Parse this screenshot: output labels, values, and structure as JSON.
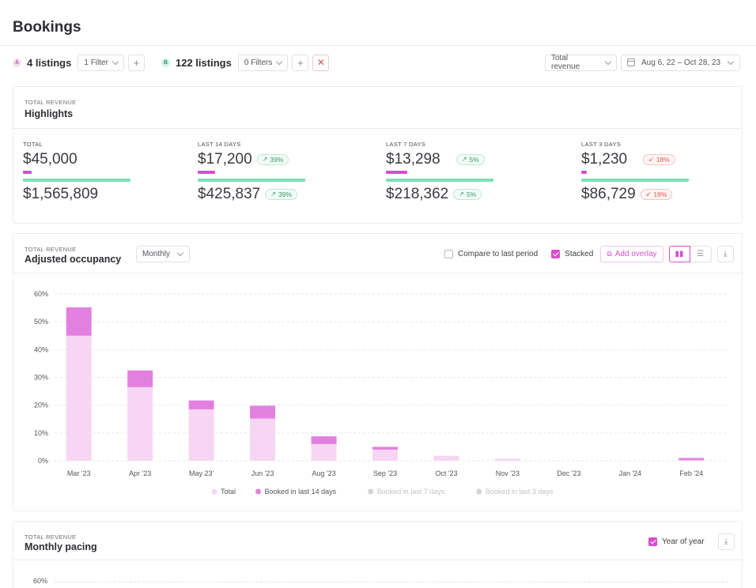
{
  "page": {
    "title": "Bookings"
  },
  "filters": {
    "group_a": {
      "badge": "A",
      "listings": "4 listings",
      "filter_label": "1 Filter"
    },
    "group_b": {
      "badge": "B",
      "listings": "122 listings",
      "filter_label": "0 Filters"
    },
    "metric_select": "Total revenue",
    "date_range": "Aug 6, 22 – Oct 28, 23"
  },
  "highlights": {
    "eyebrow": "TOTAL REVENUE",
    "title": "Highlights",
    "items": [
      {
        "label": "TOTAL",
        "value_a": "$45,000",
        "value_b": "$1,565,809",
        "pink_share": 0.08,
        "green_share": 1.0,
        "change_a": "",
        "change_b": "",
        "direction": ""
      },
      {
        "label": "LAST 14 DAYS",
        "value_a": "$17,200",
        "value_b": "$425,837",
        "pink_share": 0.16,
        "green_share": 1.0,
        "change_a": "39%",
        "change_b": "39%",
        "direction": "up"
      },
      {
        "label": "LAST 7 DAYS",
        "value_a": "$13,298",
        "value_b": "$218,362",
        "pink_share": 0.2,
        "green_share": 1.0,
        "change_a": "5%",
        "change_b": "5%",
        "direction": "up"
      },
      {
        "label": "LAST 3 DAYS",
        "value_a": "$1,230",
        "value_b": "$86,729",
        "pink_share": 0.05,
        "green_share": 1.0,
        "change_a": "18%",
        "change_b": "18%",
        "direction": "down"
      }
    ]
  },
  "occupancy": {
    "eyebrow": "TOTAL REVENUE",
    "title": "Adjusted occupancy",
    "period_select": "Monthly",
    "compare_label": "Compare to last period",
    "compare_checked": false,
    "stacked_label": "Stacked",
    "stacked_checked": true,
    "add_overlay_label": "Add overlay",
    "view_icons": [
      "bar-chart-icon",
      "table-icon"
    ],
    "download_icon": "download-icon"
  },
  "chart_data": {
    "type": "bar",
    "stacked": true,
    "categories": [
      "Mar '23",
      "Apr '23",
      "May 23'",
      "Jun '23",
      "Aug '23",
      "Sep '23",
      "Oct '23",
      "Nov '23",
      "Dec '23",
      "Jan '24",
      "Feb '24"
    ],
    "series": [
      {
        "name": "Total",
        "color": "#f6d6f3",
        "values": [
          45,
          26.5,
          18.5,
          15.2,
          6,
          4,
          1.8,
          0.8,
          0,
          0,
          0.2
        ]
      },
      {
        "name": "Booked in last 14 days",
        "color": "#e280df",
        "values": [
          10.2,
          6,
          3.2,
          4.6,
          2.8,
          1,
          0,
          0,
          0,
          0,
          0.8
        ]
      },
      {
        "name": "Booked in last 7 days",
        "color": "#c9c9cf",
        "values": [
          0,
          0,
          0,
          0,
          0,
          0,
          0,
          0,
          0,
          0,
          0
        ]
      },
      {
        "name": "Booked in last 3 days",
        "color": "#c9c9cf",
        "values": [
          0,
          0,
          0,
          0,
          0,
          0,
          0,
          0,
          0,
          0,
          0
        ]
      }
    ],
    "ylim": [
      0,
      60
    ],
    "yticks": [
      "0%",
      "10%",
      "20%",
      "30%",
      "40%",
      "50%",
      "60%"
    ],
    "ytick_values": [
      0,
      10,
      20,
      30,
      40,
      50,
      60
    ],
    "grid": true,
    "legend_position": "bottom-center"
  },
  "pacing": {
    "eyebrow": "TOTAL REVENUE",
    "title": "Monthly pacing",
    "yoy_label": "Year of year",
    "yoy_checked": true,
    "top_tick": "60%"
  }
}
